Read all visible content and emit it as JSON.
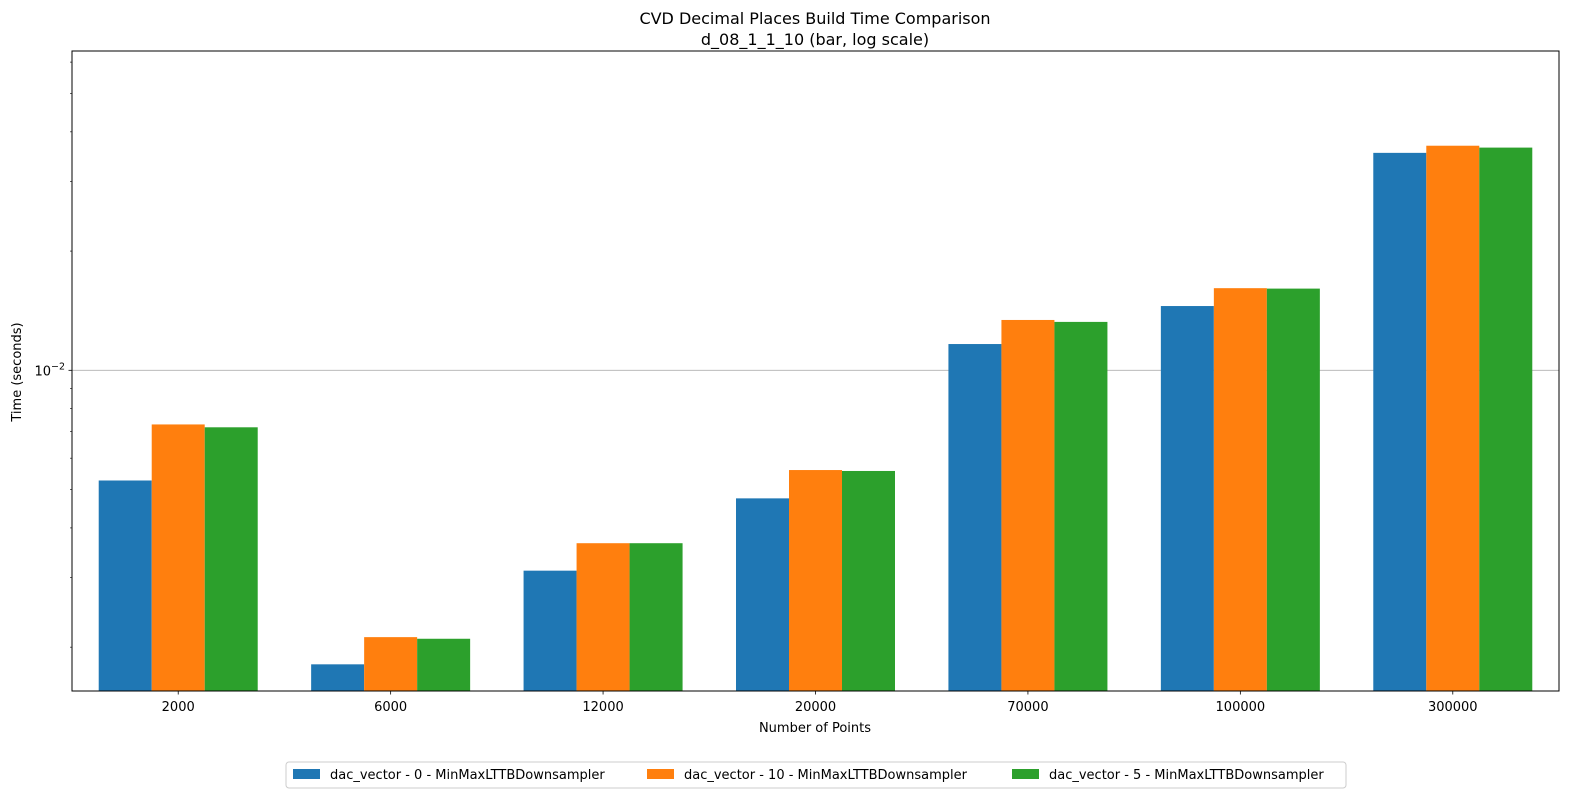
{
  "chart_data": {
    "type": "bar",
    "title": "CVD Decimal Places Build Time Comparison",
    "subtitle": "d_08_1_1_10 (bar, log scale)",
    "xlabel": "Number of Points",
    "ylabel": "Time (seconds)",
    "yscale": "log",
    "ylim": [
      0.00155,
      0.064
    ],
    "yticks": [
      {
        "value": 0.01,
        "base": "10",
        "exponent": "−2"
      }
    ],
    "grid": "y-major",
    "legend_position": "bottom-center",
    "categories": [
      "2000",
      "6000",
      "12000",
      "20000",
      "70000",
      "100000",
      "300000"
    ],
    "series": [
      {
        "name": "dac_vector - 0 - MinMaxLTTBDownsampler",
        "color": "#1f77b4",
        "values": [
          0.00527,
          0.00181,
          0.00312,
          0.00475,
          0.01165,
          0.01453,
          0.0354
        ]
      },
      {
        "name": "dac_vector - 10 - MinMaxLTTBDownsampler",
        "color": "#ff7f0e",
        "values": [
          0.0073,
          0.00212,
          0.00366,
          0.0056,
          0.0134,
          0.01612,
          0.0369
        ]
      },
      {
        "name": "dac_vector - 5 - MinMaxLTTBDownsampler",
        "color": "#2ca02c",
        "values": [
          0.00718,
          0.0021,
          0.00366,
          0.00557,
          0.01325,
          0.01608,
          0.0365
        ]
      }
    ]
  }
}
